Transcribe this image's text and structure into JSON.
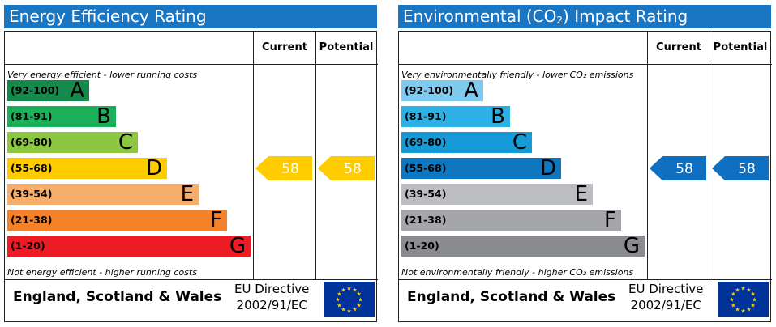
{
  "chart_data": [
    {
      "type": "bar",
      "title": "Energy Efficiency Rating",
      "top_note": "Very energy efficient - lower running costs",
      "bottom_note": "Not energy efficient - higher running costs",
      "columns": [
        "Current",
        "Potential"
      ],
      "bands": [
        {
          "range": "(92-100)",
          "letter": "A",
          "color": "#138a4a",
          "text_color": "#000000"
        },
        {
          "range": "(81-91)",
          "letter": "B",
          "color": "#1bb05a",
          "text_color": "#000000"
        },
        {
          "range": "(69-80)",
          "letter": "C",
          "color": "#8dc63f",
          "text_color": "#000000"
        },
        {
          "range": "(55-68)",
          "letter": "D",
          "color": "#ffcc00",
          "text_color": "#000000"
        },
        {
          "range": "(39-54)",
          "letter": "E",
          "color": "#f6ae6a",
          "text_color": "#000000"
        },
        {
          "range": "(21-38)",
          "letter": "F",
          "color": "#f3822a",
          "text_color": "#000000"
        },
        {
          "range": "(1-20)",
          "letter": "G",
          "color": "#ed1c24",
          "text_color": "#000000"
        }
      ],
      "current": {
        "value": 58,
        "label": "58",
        "band": "D",
        "color": "#ffcc00"
      },
      "potential": {
        "value": 58,
        "label": "58",
        "band": "D",
        "color": "#ffcc00"
      },
      "footer": {
        "region": "England, Scotland & Wales",
        "directive_line1": "EU Directive",
        "directive_line2": "2002/91/EC"
      }
    },
    {
      "type": "bar",
      "title_prefix": "Environmental (CO",
      "title_sub": "2",
      "title_suffix": ") Impact Rating",
      "top_note": "Very environmentally friendly - lower CO₂ emissions",
      "bottom_note": "Not environmentally friendly - higher CO₂ emissions",
      "columns": [
        "Current",
        "Potential"
      ],
      "bands": [
        {
          "range": "(92-100)",
          "letter": "A",
          "color": "#7fcbf0",
          "text_color": "#000000"
        },
        {
          "range": "(81-91)",
          "letter": "B",
          "color": "#2bb1e6",
          "text_color": "#000000"
        },
        {
          "range": "(69-80)",
          "letter": "C",
          "color": "#159bd7",
          "text_color": "#000000"
        },
        {
          "range": "(55-68)",
          "letter": "D",
          "color": "#0f76c0",
          "text_color": "#000000"
        },
        {
          "range": "(39-54)",
          "letter": "E",
          "color": "#bbbdc0",
          "text_color": "#000000"
        },
        {
          "range": "(21-38)",
          "letter": "F",
          "color": "#a4a6a9",
          "text_color": "#000000"
        },
        {
          "range": "(1-20)",
          "letter": "G",
          "color": "#8a8c8f",
          "text_color": "#000000"
        }
      ],
      "current": {
        "value": 58,
        "label": "58",
        "band": "D",
        "color": "#0f6fc0"
      },
      "potential": {
        "value": 58,
        "label": "58",
        "band": "D",
        "color": "#0f6fc0"
      },
      "footer": {
        "region": "England, Scotland & Wales",
        "directive_line1": "EU Directive",
        "directive_line2": "2002/91/EC"
      }
    }
  ]
}
